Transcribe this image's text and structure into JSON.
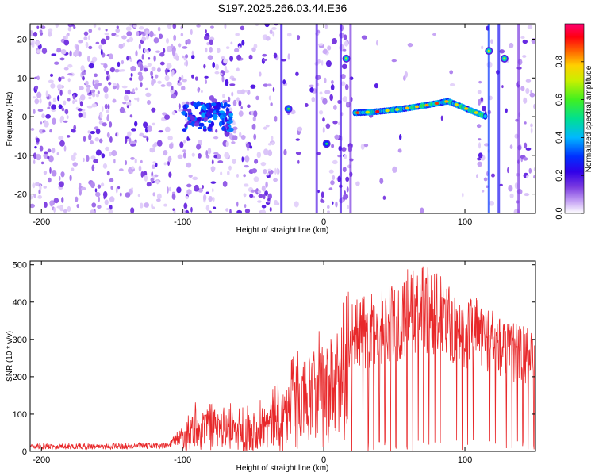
{
  "title": "S197.2025.266.03.44.E36",
  "chart_data": [
    {
      "type": "heatmap",
      "name": "spectrogram",
      "xlabel": "Height of straight line (km)",
      "ylabel": "Frequency (Hz)",
      "xlim": [
        -208,
        150
      ],
      "ylim": [
        -25,
        24
      ],
      "xticks": [
        -200,
        -100,
        0,
        100
      ],
      "xtick_labels": [
        "-200",
        "-100",
        "0",
        "100"
      ],
      "yticks": [
        -20,
        -10,
        0,
        10,
        20
      ],
      "ytick_labels": [
        "-20",
        "-10",
        "0",
        "10",
        "20"
      ],
      "colorbar": {
        "label": "Normalized spectral amplitude",
        "range": [
          0,
          1
        ],
        "ticks": [
          0.0,
          0.2,
          0.4,
          0.6,
          0.8
        ],
        "tick_labels": [
          "0.0",
          "0.2",
          "0.4",
          "0.6",
          "0.8"
        ],
        "colormap": [
          "#ffffff",
          "#9a5af0",
          "#5a00d8",
          "#0000ff",
          "#00c8ff",
          "#00e080",
          "#80f000",
          "#f0e000",
          "#ff8000",
          "#ff0000",
          "#ff0070"
        ]
      },
      "features": [
        {
          "name": "noise cluster",
          "x_range": [
            -100,
            -65
          ],
          "frequency": 0,
          "peak_amplitude": 0.3
        },
        {
          "name": "echo",
          "x": -25,
          "frequency": 2,
          "peak_amplitude": 0.35
        },
        {
          "name": "echo",
          "x": 2,
          "frequency": -7,
          "peak_amplitude": 0.3
        },
        {
          "name": "echo",
          "x": 16,
          "frequency": 15,
          "peak_amplitude": 0.45
        },
        {
          "name": "main trace",
          "x_range": [
            22,
            115
          ],
          "frequency_start": 1,
          "frequency_peak": 4,
          "frequency_peak_x": 88,
          "frequency_end": 0,
          "peak_amplitude": 0.95
        },
        {
          "name": "echo",
          "x": 117,
          "frequency": 17,
          "peak_amplitude": 0.45
        },
        {
          "name": "echo",
          "x": 128,
          "frequency": 15,
          "peak_amplitude": 0.45
        }
      ]
    },
    {
      "type": "line",
      "name": "snr",
      "xlabel": "Height of straight line (km)",
      "ylabel": "SNR (10 * v/v)",
      "xlim": [
        -208,
        150
      ],
      "ylim": [
        0,
        510
      ],
      "xticks": [
        -200,
        -100,
        0,
        100
      ],
      "xtick_labels": [
        "-200",
        "-100",
        "0",
        "100"
      ],
      "yticks": [
        0,
        100,
        200,
        300,
        400,
        500
      ],
      "ytick_labels": [
        "0",
        "100",
        "200",
        "300",
        "400",
        "500"
      ],
      "color": "#e8282a",
      "series": [
        {
          "name": "SNR envelope",
          "x": [
            -208,
            -150,
            -110,
            -100,
            -90,
            -80,
            -70,
            -60,
            -50,
            -40,
            -30,
            -20,
            -10,
            0,
            10,
            20,
            30,
            40,
            50,
            60,
            70,
            80,
            90,
            100,
            110,
            120,
            130,
            140,
            150
          ],
          "values": [
            18,
            18,
            20,
            60,
            120,
            110,
            120,
            100,
            110,
            130,
            170,
            230,
            260,
            290,
            320,
            390,
            400,
            420,
            430,
            470,
            480,
            470,
            420,
            400,
            400,
            370,
            330,
            330,
            330
          ]
        }
      ]
    }
  ]
}
